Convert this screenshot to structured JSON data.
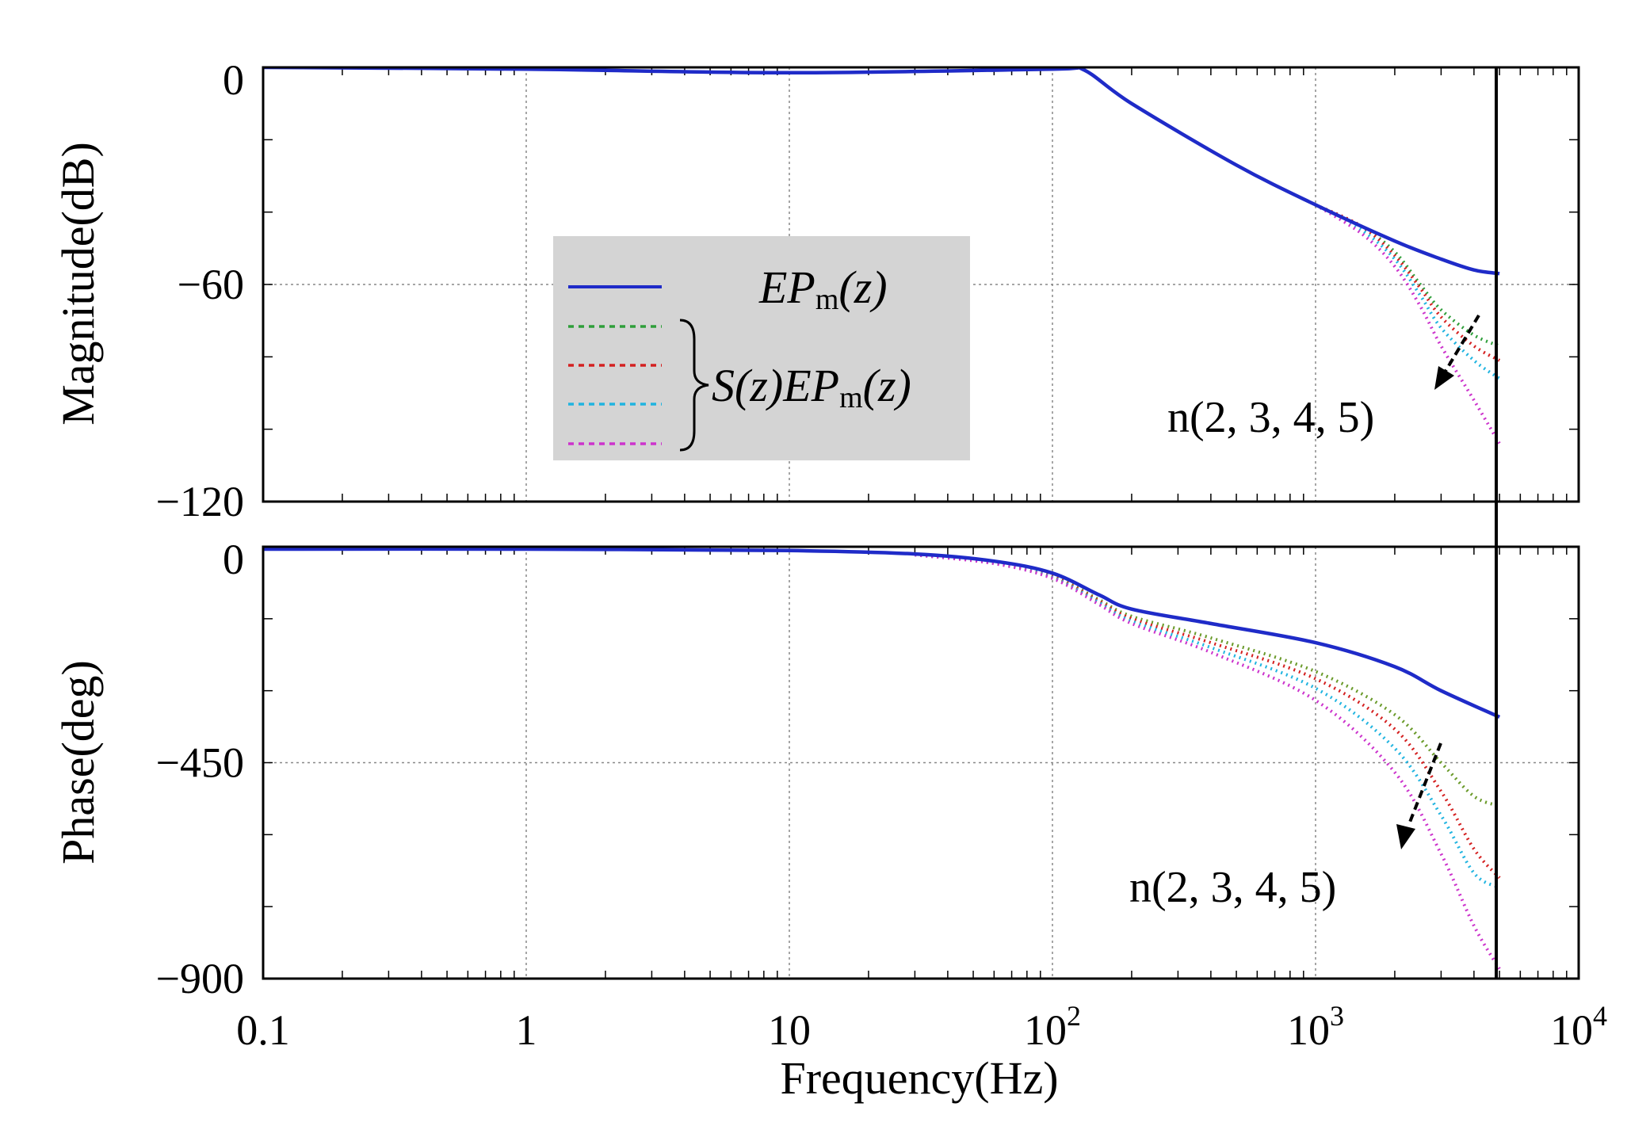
{
  "chart_data": [
    {
      "type": "line",
      "panel": "magnitude",
      "ylabel": "Magnitude(dB)",
      "xscale": "log",
      "xlim": [
        0.1,
        10000
      ],
      "ylim": [
        -120,
        0
      ],
      "yticks": [
        0,
        -60,
        -120
      ],
      "ytick_labels": [
        "0",
        "−60",
        "−120"
      ],
      "grid": true,
      "legend_position": "center-left",
      "legend": {
        "main": {
          "base": "EP",
          "sub": "m",
          "tail": "(z)"
        },
        "group": {
          "pre": "S(z)EP",
          "sub": "m",
          "tail": "(z)"
        }
      },
      "annotation": "n(2, 3, 4, 5)",
      "series": [
        {
          "key": "ep",
          "color": "#1f2bc8",
          "style": "solid",
          "x": [
            0.1,
            1,
            10,
            100,
            130,
            200,
            500,
            1000,
            2000,
            3000,
            4000,
            5000
          ],
          "y": [
            0,
            -0.5,
            -1.5,
            -0.5,
            -0.5,
            -10,
            -27,
            -38,
            -48,
            -53,
            -56,
            -57
          ]
        },
        {
          "key": "s2",
          "color": "#2e9e3a",
          "style": "dotted",
          "x": [
            1000,
            1500,
            2000,
            2500,
            3000,
            4000,
            5000
          ],
          "y": [
            -38,
            -44,
            -51,
            -60,
            -67,
            -74,
            -77
          ]
        },
        {
          "key": "s3",
          "color": "#d42020",
          "style": "dotted",
          "x": [
            1000,
            1500,
            2000,
            2500,
            3000,
            4000,
            5000
          ],
          "y": [
            -38,
            -44,
            -52,
            -61,
            -69,
            -77,
            -81
          ]
        },
        {
          "key": "s4",
          "color": "#20b4e0",
          "style": "dotted",
          "x": [
            1000,
            1500,
            2000,
            2500,
            3000,
            4000,
            5000
          ],
          "y": [
            -38,
            -45,
            -53,
            -63,
            -72,
            -81,
            -86
          ]
        },
        {
          "key": "s5",
          "color": "#cc33cc",
          "style": "dotted",
          "x": [
            1000,
            1500,
            2000,
            2500,
            3000,
            4000,
            5000
          ],
          "y": [
            -38,
            -46,
            -55,
            -66,
            -77,
            -92,
            -104
          ]
        }
      ]
    },
    {
      "type": "line",
      "panel": "phase",
      "xlabel": "Frequency(Hz)",
      "ylabel": "Phase(deg)",
      "xscale": "log",
      "xlim": [
        0.1,
        10000
      ],
      "ylim": [
        -900,
        0
      ],
      "yticks": [
        0,
        -450,
        -900
      ],
      "ytick_labels": [
        "0",
        "−450",
        "−900"
      ],
      "xticks": [
        0.1,
        1,
        10,
        100,
        1000,
        10000
      ],
      "xtick_labels": [
        {
          "base": "0.1",
          "exp": ""
        },
        {
          "base": "1",
          "exp": ""
        },
        {
          "base": "10",
          "exp": ""
        },
        {
          "base": "10",
          "exp": "2"
        },
        {
          "base": "10",
          "exp": "3"
        },
        {
          "base": "10",
          "exp": "4"
        }
      ],
      "grid": true,
      "annotation": "n(2, 3, 4, 5)",
      "series": [
        {
          "key": "ep",
          "color": "#1f2bc8",
          "style": "solid",
          "x": [
            0.1,
            1,
            10,
            30,
            60,
            100,
            150,
            200,
            400,
            1000,
            2000,
            3000,
            5000
          ],
          "y": [
            -5,
            -5,
            -8,
            -15,
            -30,
            -55,
            -100,
            -130,
            -160,
            -200,
            -250,
            -300,
            -355
          ]
        },
        {
          "key": "s2",
          "color": "#6a9a2a",
          "style": "dotted",
          "x": [
            30,
            60,
            100,
            150,
            200,
            400,
            1000,
            2000,
            3000,
            4000,
            5000
          ],
          "y": [
            -16,
            -32,
            -60,
            -110,
            -145,
            -190,
            -260,
            -350,
            -450,
            -520,
            -540
          ]
        },
        {
          "key": "s3",
          "color": "#d42020",
          "style": "dotted",
          "x": [
            30,
            60,
            100,
            150,
            200,
            400,
            1000,
            2000,
            3000,
            4000,
            5000
          ],
          "y": [
            -16,
            -33,
            -62,
            -113,
            -150,
            -200,
            -275,
            -380,
            -510,
            -630,
            -690
          ]
        },
        {
          "key": "s4",
          "color": "#20b4e0",
          "style": "dotted",
          "x": [
            30,
            60,
            100,
            150,
            200,
            400,
            1000,
            2000,
            3000,
            4000,
            5000
          ],
          "y": [
            -17,
            -34,
            -64,
            -116,
            -155,
            -210,
            -295,
            -420,
            -560,
            -680,
            -710
          ]
        },
        {
          "key": "s5",
          "color": "#cc33cc",
          "style": "dotted",
          "x": [
            30,
            60,
            100,
            150,
            200,
            400,
            1000,
            2000,
            3000,
            4000,
            5000
          ],
          "y": [
            -17,
            -35,
            -66,
            -120,
            -160,
            -220,
            -320,
            -470,
            -640,
            -790,
            -880
          ]
        }
      ]
    }
  ]
}
